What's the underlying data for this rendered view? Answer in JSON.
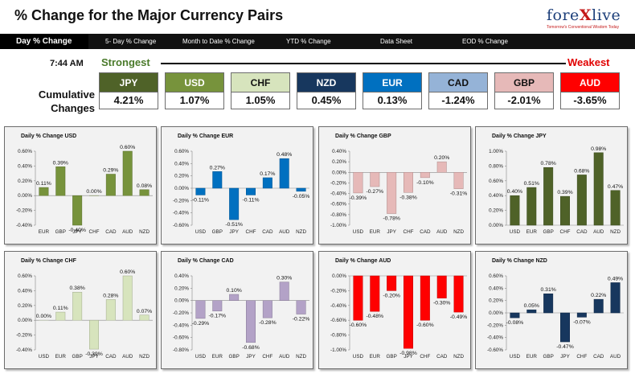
{
  "header": {
    "title": "% Change for the Major Currency Pairs",
    "logo": {
      "prefix": "fore",
      "x": "X",
      "suffix": "live",
      "tagline": "Tomorrow's Conventional Wisdom Today"
    }
  },
  "tabs": [
    {
      "label": "Day % Change",
      "active": true
    },
    {
      "label": "5- Day % Change",
      "active": false
    },
    {
      "label": "Month to Date % Change",
      "active": false
    },
    {
      "label": "YTD % Change",
      "active": false
    },
    {
      "label": "Data Sheet",
      "active": false
    },
    {
      "label": "EOD % Change",
      "active": false
    }
  ],
  "summary": {
    "time": "7:44 AM",
    "strongest_label": "Strongest",
    "weakest_label": "Weakest",
    "cumulative_label": "Cumulative Changes",
    "currencies": [
      {
        "name": "JPY",
        "value": "4.21%",
        "color": "#4f6228",
        "text": "#ffffff"
      },
      {
        "name": "USD",
        "value": "1.07%",
        "color": "#77933c",
        "text": "#ffffff"
      },
      {
        "name": "CHF",
        "value": "1.05%",
        "color": "#d7e4bd",
        "text": "#111111"
      },
      {
        "name": "NZD",
        "value": "0.45%",
        "color": "#17375e",
        "text": "#ffffff"
      },
      {
        "name": "EUR",
        "value": "0.13%",
        "color": "#0070c0",
        "text": "#ffffff"
      },
      {
        "name": "CAD",
        "value": "-1.24%",
        "color": "#95b3d7",
        "text": "#111111"
      },
      {
        "name": "GBP",
        "value": "-2.01%",
        "color": "#e6b9b8",
        "text": "#111111"
      },
      {
        "name": "AUD",
        "value": "-3.65%",
        "color": "#ff0000",
        "text": "#ffffff"
      }
    ]
  },
  "chart_data": [
    {
      "type": "bar",
      "title": "Daily % Change USD",
      "color": "#77933c",
      "categories": [
        "EUR",
        "GBP",
        "JPY",
        "CHF",
        "CAD",
        "AUD",
        "NZD"
      ],
      "values": [
        0.11,
        0.39,
        -0.4,
        0.0,
        0.29,
        0.6,
        0.08
      ],
      "labels": [
        "0.11%",
        "0.39%",
        "-0.40%",
        "0.00%",
        "0.29%",
        "0.60%",
        "0.08%"
      ],
      "ylim": [
        -0.4,
        0.6
      ],
      "yticks": [
        "0.60%",
        "0.40%",
        "0.20%",
        "0.00%",
        "-0.20%",
        "-0.40%"
      ]
    },
    {
      "type": "bar",
      "title": "Daily % Change EUR",
      "color": "#0070c0",
      "categories": [
        "USD",
        "GBP",
        "JPY",
        "CHF",
        "CAD",
        "AUD",
        "NZD"
      ],
      "values": [
        -0.11,
        0.27,
        -0.51,
        -0.11,
        0.17,
        0.48,
        -0.05
      ],
      "labels": [
        "-0.11%",
        "0.27%",
        "-0.51%",
        "-0.11%",
        "0.17%",
        "0.48%",
        "-0.05%"
      ],
      "ylim": [
        -0.6,
        0.6
      ],
      "yticks": [
        "0.60%",
        "0.40%",
        "0.20%",
        "0.00%",
        "-0.20%",
        "-0.40%",
        "-0.60%"
      ]
    },
    {
      "type": "bar",
      "title": "Daily % Change GBP",
      "color": "#e6b9b8",
      "categories": [
        "USD",
        "EUR",
        "JPY",
        "CHF",
        "CAD",
        "AUD",
        "NZD"
      ],
      "values": [
        -0.39,
        -0.27,
        -0.78,
        -0.38,
        -0.1,
        0.2,
        -0.31
      ],
      "labels": [
        "-0.39%",
        "-0.27%",
        "-0.78%",
        "-0.38%",
        "-0.10%",
        "0.20%",
        "-0.31%"
      ],
      "ylim": [
        -1.0,
        0.4
      ],
      "yticks": [
        "0.40%",
        "0.20%",
        "0.00%",
        "-0.20%",
        "-0.40%",
        "-0.60%",
        "-0.80%",
        "-1.00%"
      ]
    },
    {
      "type": "bar",
      "title": "Daily % Change JPY",
      "color": "#4f6228",
      "categories": [
        "USD",
        "EUR",
        "GBP",
        "CHF",
        "CAD",
        "AUD",
        "NZD"
      ],
      "values": [
        0.4,
        0.51,
        0.78,
        0.39,
        0.68,
        0.98,
        0.47
      ],
      "labels": [
        "0.40%",
        "0.51%",
        "0.78%",
        "0.39%",
        "0.68%",
        "0.98%",
        "0.47%"
      ],
      "ylim": [
        0.0,
        1.0
      ],
      "yticks": [
        "1.00%",
        "0.80%",
        "0.60%",
        "0.40%",
        "0.20%",
        "0.00%"
      ]
    },
    {
      "type": "bar",
      "title": "Daily % Change CHF",
      "color": "#d7e4bd",
      "categories": [
        "USD",
        "EUR",
        "GBP",
        "JPY",
        "CAD",
        "AUD",
        "NZD"
      ],
      "values": [
        0.0,
        0.11,
        0.38,
        -0.39,
        0.28,
        0.6,
        0.07
      ],
      "labels": [
        "0.00%",
        "0.11%",
        "0.38%",
        "-0.39%",
        "0.28%",
        "0.60%",
        "0.07%"
      ],
      "ylim": [
        -0.4,
        0.6
      ],
      "yticks": [
        "0.60%",
        "0.40%",
        "0.20%",
        "0.00%",
        "-0.20%",
        "-0.40%"
      ]
    },
    {
      "type": "bar",
      "title": "Daily % Change CAD",
      "color": "#b3a2c7",
      "categories": [
        "USD",
        "EUR",
        "GBP",
        "JPY",
        "CHF",
        "AUD",
        "NZD"
      ],
      "values": [
        -0.29,
        -0.17,
        0.1,
        -0.68,
        -0.28,
        0.3,
        -0.22
      ],
      "labels": [
        "-0.29%",
        "-0.17%",
        "0.10%",
        "-0.68%",
        "-0.28%",
        "0.30%",
        "-0.22%"
      ],
      "ylim": [
        -0.8,
        0.4
      ],
      "yticks": [
        "0.40%",
        "0.20%",
        "0.00%",
        "-0.20%",
        "-0.40%",
        "-0.60%",
        "-0.80%"
      ]
    },
    {
      "type": "bar",
      "title": "Daily % Change AUD",
      "color": "#ff0000",
      "categories": [
        "USD",
        "EUR",
        "GBP",
        "JPY",
        "CHF",
        "CAD",
        "NZD"
      ],
      "values": [
        -0.6,
        -0.48,
        -0.2,
        -0.98,
        -0.6,
        -0.3,
        -0.49
      ],
      "labels": [
        "-0.60%",
        "-0.48%",
        "-0.20%",
        "-0.98%",
        "-0.60%",
        "-0.30%",
        "-0.49%"
      ],
      "ylim": [
        -1.0,
        0.0
      ],
      "yticks": [
        "0.00%",
        "-0.20%",
        "-0.40%",
        "-0.60%",
        "-0.80%",
        "-1.00%"
      ]
    },
    {
      "type": "bar",
      "title": "Daily % Change NZD",
      "color": "#17375e",
      "categories": [
        "USD",
        "EUR",
        "GBP",
        "JPY",
        "CHF",
        "CAD",
        "AUD"
      ],
      "values": [
        -0.08,
        0.05,
        0.31,
        -0.47,
        -0.07,
        0.22,
        0.49
      ],
      "labels": [
        "-0.08%",
        "0.05%",
        "0.31%",
        "-0.47%",
        "-0.07%",
        "0.22%",
        "0.49%"
      ],
      "ylim": [
        -0.6,
        0.6
      ],
      "yticks": [
        "0.60%",
        "0.40%",
        "0.20%",
        "0.00%",
        "-0.20%",
        "-0.40%",
        "-0.60%"
      ]
    }
  ]
}
